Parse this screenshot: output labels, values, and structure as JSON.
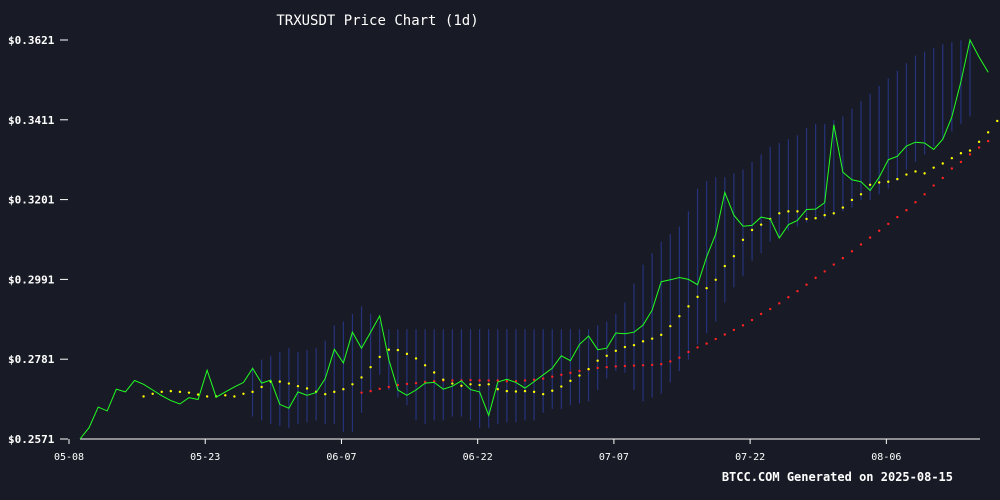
{
  "chart_data": {
    "type": "line",
    "title": "TRXUSDT Price Chart (1d)",
    "footer": "BTCC.COM Generated on 2025-08-15",
    "y_ticks": [
      "$0.2571",
      "$0.2781",
      "$0.2991",
      "$0.3201",
      "$0.3411",
      "$0.3621"
    ],
    "x_ticks": [
      "05-08",
      "05-23",
      "06-07",
      "06-22",
      "07-07",
      "07-22",
      "08-06"
    ],
    "ylim": [
      0.2571,
      0.3621
    ],
    "start_date": "2025-05-08",
    "grid": false,
    "colors": {
      "background": "#181b25",
      "price": "#22ff22",
      "ma_short": "#ffff00",
      "ma_long": "#ff2222",
      "band": "#2a3a9a"
    },
    "series": [
      {
        "key": "price",
        "values": [
          0.2571,
          0.2601,
          0.2655,
          0.2645,
          0.2702,
          0.2695,
          0.2725,
          0.2715,
          0.27,
          0.2685,
          0.2672,
          0.2663,
          0.268,
          0.2675,
          0.2752,
          0.2681,
          0.2695,
          0.2708,
          0.272,
          0.2757,
          0.2718,
          0.2726,
          0.2662,
          0.2652,
          0.2695,
          0.2686,
          0.2693,
          0.273,
          0.2807,
          0.2771,
          0.2852,
          0.281,
          0.2852,
          0.2895,
          0.278,
          0.27,
          0.2686,
          0.27,
          0.2718,
          0.272,
          0.2702,
          0.271,
          0.2724,
          0.2701,
          0.2695,
          0.2633,
          0.2721,
          0.2728,
          0.272,
          0.2705,
          0.2722,
          0.274,
          0.2757,
          0.279,
          0.2777,
          0.282,
          0.2842,
          0.2806,
          0.281,
          0.285,
          0.2848,
          0.2852,
          0.2871,
          0.291,
          0.2985,
          0.299,
          0.2996,
          0.2991,
          0.2977,
          0.305,
          0.311,
          0.322,
          0.316,
          0.3131,
          0.3133,
          0.3155,
          0.315,
          0.31,
          0.3135,
          0.3146,
          0.3175,
          0.3176,
          0.3193,
          0.3398,
          0.3273,
          0.3253,
          0.3248,
          0.3225,
          0.326,
          0.3306,
          0.3315,
          0.3342,
          0.3352,
          0.335,
          0.3333,
          0.336,
          0.3418,
          0.3511,
          0.3621,
          0.3576,
          0.3536
        ]
      },
      {
        "key": "ma_short",
        "start": 7,
        "values": [
          0.2683,
          0.269,
          0.2695,
          0.2697,
          0.2695,
          0.2693,
          0.2688,
          0.2683,
          0.2683,
          0.2686,
          0.2683,
          0.269,
          0.2695,
          0.2708,
          0.2722,
          0.2722,
          0.2717,
          0.271,
          0.2704,
          0.2695,
          0.2689,
          0.2695,
          0.2702,
          0.2715,
          0.2733,
          0.276,
          0.2787,
          0.2806,
          0.2805,
          0.2795,
          0.2783,
          0.2765,
          0.2746,
          0.2727,
          0.2717,
          0.2711,
          0.2715,
          0.2713,
          0.2715,
          0.2702,
          0.2697,
          0.2696,
          0.2697,
          0.2695,
          0.2689,
          0.2698,
          0.2709,
          0.2724,
          0.2738,
          0.2755,
          0.2777,
          0.279,
          0.2803,
          0.2813,
          0.2818,
          0.2828,
          0.2835,
          0.2845,
          0.2868,
          0.2894,
          0.292,
          0.2945,
          0.2968,
          0.299,
          0.3026,
          0.3052,
          0.3095,
          0.3121,
          0.3135,
          0.315,
          0.3165,
          0.317,
          0.317,
          0.315,
          0.3152,
          0.316,
          0.3165,
          0.318,
          0.32,
          0.3215,
          0.324,
          0.3246,
          0.3248,
          0.3255,
          0.3267,
          0.3275,
          0.327,
          0.3285,
          0.3296,
          0.331,
          0.3323,
          0.333,
          0.3353,
          0.3378,
          0.3408,
          0.3435,
          0.3463,
          0.3491
        ]
      },
      {
        "key": "ma_long",
        "start": 31,
        "values": [
          0.2693,
          0.2697,
          0.2703,
          0.2708,
          0.2713,
          0.2716,
          0.2718,
          0.2721,
          0.2723,
          0.2725,
          0.2725,
          0.2725,
          0.2726,
          0.2725,
          0.2725,
          0.2725,
          0.2723,
          0.2723,
          0.2725,
          0.2727,
          0.273,
          0.2735,
          0.274,
          0.2745,
          0.275,
          0.2754,
          0.2758,
          0.276,
          0.2762,
          0.2763,
          0.2764,
          0.2765,
          0.2766,
          0.2768,
          0.2775,
          0.2785,
          0.28,
          0.2812,
          0.2822,
          0.2834,
          0.2846,
          0.2858,
          0.287,
          0.2884,
          0.29,
          0.2913,
          0.2928,
          0.2944,
          0.296,
          0.2977,
          0.2995,
          0.3012,
          0.303,
          0.3047,
          0.3065,
          0.3083,
          0.3101,
          0.3119,
          0.3137,
          0.3155,
          0.3173,
          0.3194,
          0.3215,
          0.3238,
          0.3258,
          0.3283,
          0.33,
          0.332,
          0.3338,
          0.3355
        ]
      },
      {
        "key": "band",
        "start": 19,
        "lower": [
          0.263,
          0.262,
          0.261,
          0.2605,
          0.26,
          0.261,
          0.2615,
          0.262,
          0.261,
          0.261,
          0.259,
          0.259,
          0.264,
          0.27,
          0.274,
          0.27,
          0.268,
          0.266,
          0.262,
          0.261,
          0.262,
          0.262,
          0.263,
          0.263,
          0.262,
          0.26,
          0.26,
          0.261,
          0.2615,
          0.2615,
          0.262,
          0.262,
          0.264,
          0.265,
          0.265,
          0.266,
          0.2665,
          0.267,
          0.27,
          0.273,
          0.275,
          0.2745,
          0.27,
          0.267,
          0.268,
          0.269,
          0.272,
          0.275,
          0.278,
          0.282,
          0.285,
          0.288,
          0.293,
          0.297,
          0.3,
          0.304,
          0.306,
          0.309,
          0.31,
          0.312,
          0.313,
          0.314,
          0.315,
          0.315,
          0.316,
          0.317,
          0.318,
          0.32,
          0.32,
          0.3215,
          0.323,
          0.325,
          0.328,
          0.33,
          0.332,
          0.334,
          0.336,
          0.338,
          0.34,
          0.342
        ],
        "upper": [
          0.276,
          0.278,
          0.279,
          0.28,
          0.281,
          0.28,
          0.2805,
          0.281,
          0.283,
          0.287,
          0.288,
          0.29,
          0.292,
          0.29,
          0.288,
          0.286,
          0.286,
          0.286,
          0.286,
          0.286,
          0.286,
          0.286,
          0.286,
          0.286,
          0.286,
          0.286,
          0.286,
          0.286,
          0.286,
          0.286,
          0.286,
          0.286,
          0.286,
          0.286,
          0.286,
          0.286,
          0.286,
          0.286,
          0.287,
          0.288,
          0.29,
          0.293,
          0.298,
          0.303,
          0.306,
          0.309,
          0.311,
          0.313,
          0.317,
          0.323,
          0.325,
          0.326,
          0.326,
          0.327,
          0.328,
          0.33,
          0.332,
          0.334,
          0.335,
          0.336,
          0.337,
          0.339,
          0.34,
          0.34,
          0.341,
          0.342,
          0.344,
          0.346,
          0.348,
          0.35,
          0.352,
          0.354,
          0.356,
          0.358,
          0.359,
          0.36,
          0.361,
          0.3615,
          0.362,
          0.362
        ]
      }
    ]
  }
}
